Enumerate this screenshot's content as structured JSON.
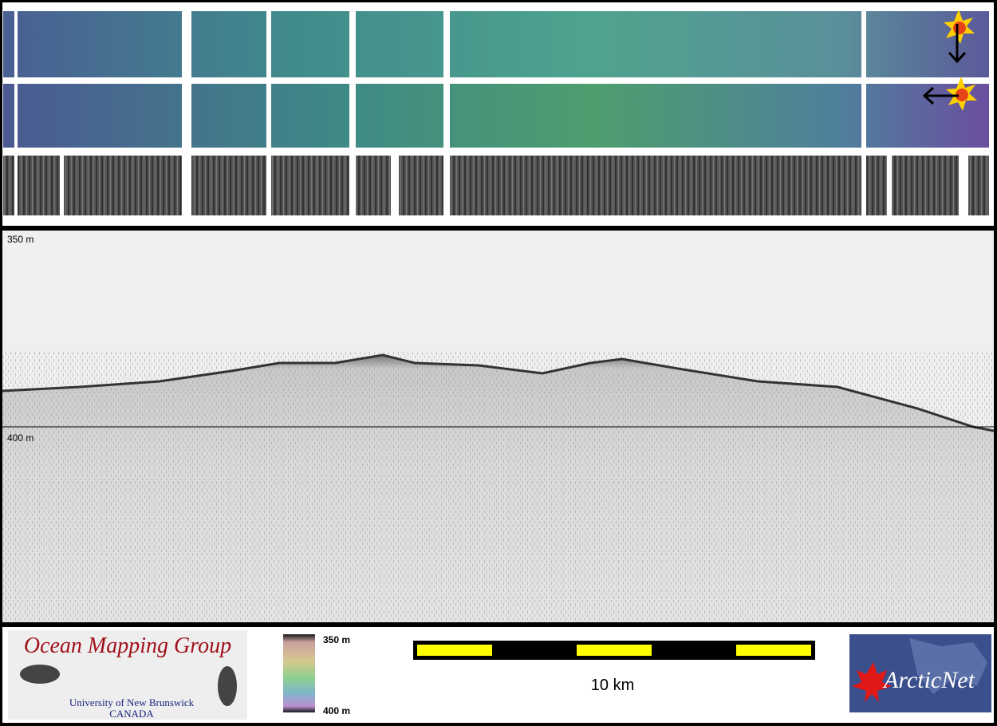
{
  "profile": {
    "top_depth_label": "350 m",
    "bottom_depth_label": "400 m"
  },
  "legend": {
    "colorbar_top_label": "350 m",
    "colorbar_bottom_label": "400 m",
    "scale_bar_label": "10 km"
  },
  "logos": {
    "left": {
      "title": "Ocean Mapping Group",
      "line1": "University of New Brunswick",
      "line2": "CANADA"
    },
    "right": {
      "title": "ArcticNet"
    }
  }
}
